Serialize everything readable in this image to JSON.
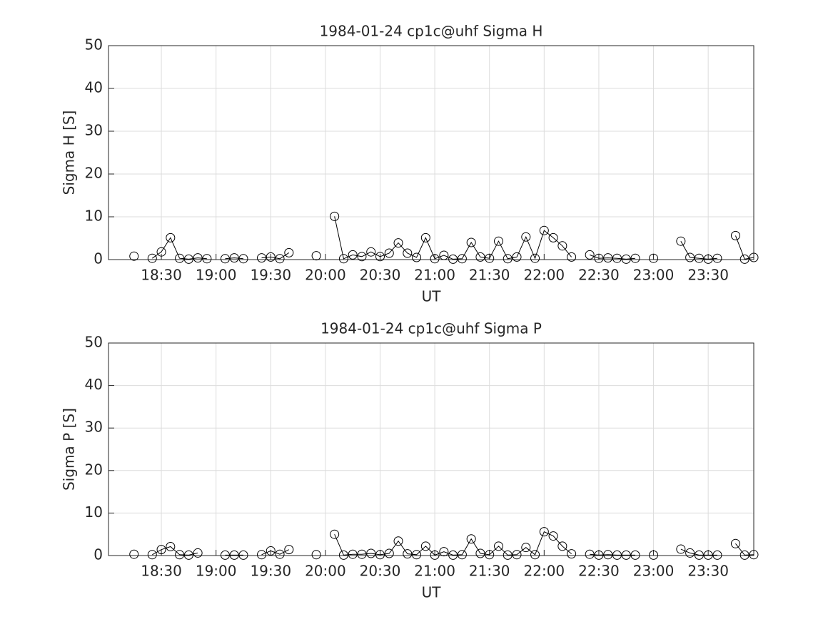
{
  "chart_data": [
    {
      "type": "line",
      "title": "1984-01-24  cp1c@uhf Sigma H",
      "xlabel": "UT",
      "ylabel": "Sigma H [S]",
      "color": "#000000",
      "marker": "circle",
      "grid": true,
      "x": [
        "18:15",
        "18:20",
        "18:25",
        "18:30",
        "18:35",
        "18:40",
        "18:45",
        "18:50",
        "18:55",
        "19:00",
        "19:05",
        "19:10",
        "19:15",
        "19:20",
        "19:25",
        "19:30",
        "19:35",
        "19:40",
        "19:50",
        "19:55",
        "20:00",
        "20:05",
        "20:10",
        "20:15",
        "20:20",
        "20:25",
        "20:30",
        "20:35",
        "20:40",
        "20:45",
        "20:50",
        "20:55",
        "21:00",
        "21:05",
        "21:10",
        "21:15",
        "21:20",
        "21:25",
        "21:30",
        "21:35",
        "21:40",
        "21:45",
        "21:50",
        "21:55",
        "22:00",
        "22:05",
        "22:10",
        "22:15",
        "22:20",
        "22:25",
        "22:30",
        "22:35",
        "22:40",
        "22:45",
        "22:50",
        "22:55",
        "23:00",
        "23:05",
        "23:15",
        "23:20",
        "23:25",
        "23:30",
        "23:35",
        "23:40",
        "23:45",
        "23:50",
        "23:55"
      ],
      "values": [
        0.8,
        null,
        0.3,
        1.8,
        5.1,
        0.3,
        0.1,
        0.4,
        0.2,
        null,
        0.2,
        0.4,
        0.2,
        null,
        0.4,
        0.6,
        0.2,
        1.6,
        null,
        0.9,
        null,
        10.1,
        0.2,
        1.1,
        0.7,
        1.8,
        0.7,
        1.5,
        3.9,
        1.5,
        0.5,
        5.1,
        0.2,
        1.0,
        0.1,
        0.2,
        4.0,
        0.6,
        0.3,
        4.3,
        0.2,
        0.6,
        5.3,
        0.3,
        6.8,
        5.1,
        3.2,
        0.6,
        null,
        1.1,
        0.3,
        0.4,
        0.3,
        0.1,
        0.3,
        null,
        0.3,
        null,
        4.3,
        0.5,
        0.3,
        0.1,
        0.3,
        null,
        5.6,
        0.1,
        0.5
      ],
      "xlim": [
        "18:01",
        "23:55"
      ],
      "xticks": [
        "18:30",
        "19:00",
        "19:30",
        "20:00",
        "20:30",
        "21:00",
        "21:30",
        "22:00",
        "22:30",
        "23:00",
        "23:30"
      ],
      "ylim": [
        0,
        50
      ],
      "yticks": [
        0,
        10,
        20,
        30,
        40,
        50
      ]
    },
    {
      "type": "line",
      "title": "1984-01-24  cp1c@uhf Sigma P",
      "xlabel": "UT",
      "ylabel": "Sigma P [S]",
      "color": "#000000",
      "marker": "circle",
      "grid": true,
      "x": [
        "18:15",
        "18:20",
        "18:25",
        "18:30",
        "18:35",
        "18:40",
        "18:45",
        "18:50",
        "18:55",
        "19:00",
        "19:05",
        "19:10",
        "19:15",
        "19:20",
        "19:25",
        "19:30",
        "19:35",
        "19:40",
        "19:50",
        "19:55",
        "20:00",
        "20:05",
        "20:10",
        "20:15",
        "20:20",
        "20:25",
        "20:30",
        "20:35",
        "20:40",
        "20:45",
        "20:50",
        "20:55",
        "21:00",
        "21:05",
        "21:10",
        "21:15",
        "21:20",
        "21:25",
        "21:30",
        "21:35",
        "21:40",
        "21:45",
        "21:50",
        "21:55",
        "22:00",
        "22:05",
        "22:10",
        "22:15",
        "22:20",
        "22:25",
        "22:30",
        "22:35",
        "22:40",
        "22:45",
        "22:50",
        "22:55",
        "23:00",
        "23:05",
        "23:15",
        "23:20",
        "23:25",
        "23:30",
        "23:35",
        "23:40",
        "23:45",
        "23:50",
        "23:55"
      ],
      "values": [
        0.3,
        null,
        0.2,
        1.4,
        2.1,
        0.2,
        0.1,
        0.6,
        null,
        null,
        0.1,
        0.1,
        0.1,
        null,
        0.2,
        1.1,
        0.3,
        1.4,
        null,
        0.2,
        null,
        5.0,
        0.1,
        0.3,
        0.3,
        0.5,
        0.2,
        0.5,
        3.4,
        0.4,
        0.2,
        2.2,
        0.1,
        0.9,
        0.1,
        0.2,
        3.9,
        0.5,
        0.2,
        2.2,
        0.1,
        0.2,
        1.9,
        0.2,
        5.6,
        4.6,
        2.2,
        0.4,
        null,
        0.3,
        0.1,
        0.2,
        0.1,
        0.1,
        0.1,
        null,
        0.1,
        null,
        1.5,
        0.6,
        0.1,
        0.1,
        0.1,
        null,
        2.8,
        0.1,
        0.2
      ],
      "xlim": [
        "18:01",
        "23:55"
      ],
      "xticks": [
        "18:30",
        "19:00",
        "19:30",
        "20:00",
        "20:30",
        "21:00",
        "21:30",
        "22:00",
        "22:30",
        "23:00",
        "23:30"
      ],
      "ylim": [
        0,
        50
      ],
      "yticks": [
        0,
        10,
        20,
        30,
        40,
        50
      ]
    }
  ]
}
